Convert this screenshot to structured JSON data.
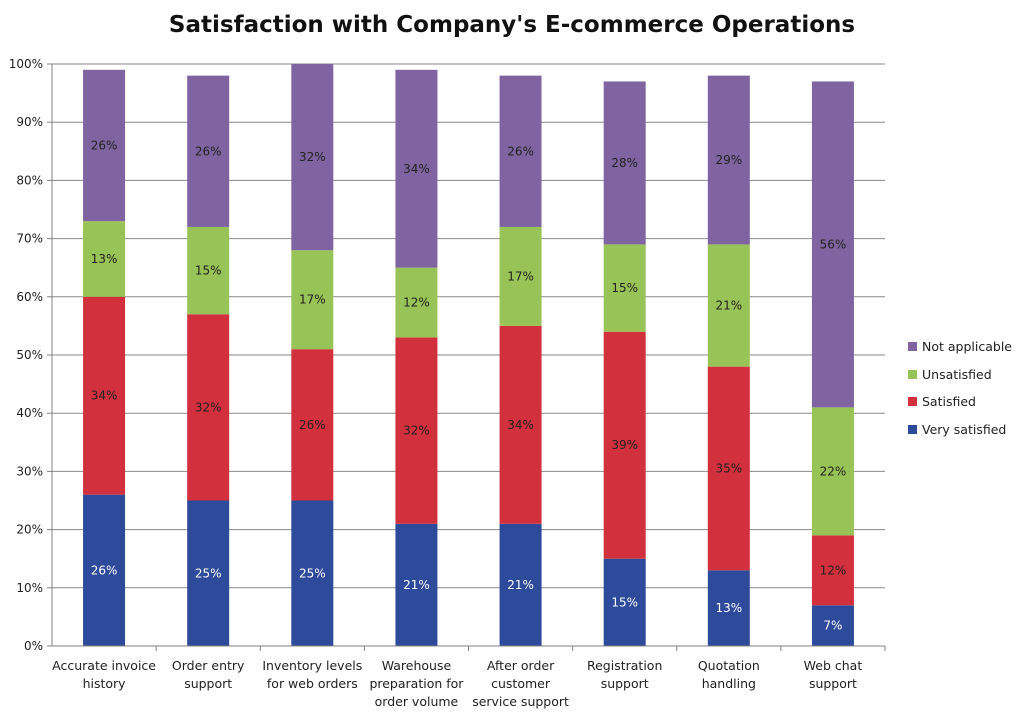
{
  "chart_data": {
    "type": "bar",
    "stacked": true,
    "title": "Satisfaction with Company's E-commerce Operations",
    "categories": [
      "Accurate invoice history",
      "Order entry support",
      "Inventory levels for web orders",
      "Warehouse preparation for order volume",
      "After order customer service support",
      "Registration support",
      "Quotation handling",
      "Web chat support"
    ],
    "category_lines": [
      [
        "Accurate invoice",
        "history"
      ],
      [
        "Order entry",
        "support"
      ],
      [
        "Inventory levels",
        "for web orders"
      ],
      [
        "Warehouse",
        "preparation for",
        "order volume"
      ],
      [
        "After order",
        "customer",
        "service support"
      ],
      [
        "Registration",
        "support"
      ],
      [
        "Quotation",
        "handling"
      ],
      [
        "Web chat",
        "support"
      ]
    ],
    "series": [
      {
        "name": "Very satisfied",
        "color": "#2E4A9A",
        "label_color": "#ffffff",
        "values": [
          26,
          25,
          25,
          21,
          21,
          15,
          13,
          7
        ],
        "labels": [
          "26%",
          "25%",
          "25%",
          "21%",
          "21%",
          "15%",
          "13%",
          "7%"
        ]
      },
      {
        "name": "Satisfied",
        "color": "#D2303C",
        "label_color": "#222222",
        "values": [
          34,
          32,
          26,
          32,
          34,
          39,
          35,
          12
        ],
        "labels": [
          "34%",
          "32%",
          "26%",
          "32%",
          "34%",
          "39%",
          "35%",
          "12%"
        ]
      },
      {
        "name": "Unsatisfied",
        "color": "#98C356",
        "label_color": "#222222",
        "values": [
          13,
          15,
          17,
          12,
          17,
          15,
          21,
          22
        ],
        "labels": [
          "13%",
          "15%",
          "17%",
          "12%",
          "17%",
          "15%",
          "21%",
          "22%"
        ]
      },
      {
        "name": "Not applicable",
        "color": "#8064A2",
        "label_color": "#222222",
        "values": [
          26,
          26,
          32,
          34,
          26,
          28,
          29,
          56
        ],
        "labels": [
          "26%",
          "26%",
          "32%",
          "34%",
          "26%",
          "28%",
          "29%",
          "56%"
        ]
      }
    ],
    "y_ticks": [
      "0%",
      "10%",
      "20%",
      "30%",
      "40%",
      "50%",
      "60%",
      "70%",
      "80%",
      "90%",
      "100%"
    ],
    "ylim": [
      0,
      100
    ],
    "grid": true,
    "legend_position": "right",
    "legend_order": [
      "Not applicable",
      "Unsatisfied",
      "Satisfied",
      "Very satisfied"
    ]
  }
}
